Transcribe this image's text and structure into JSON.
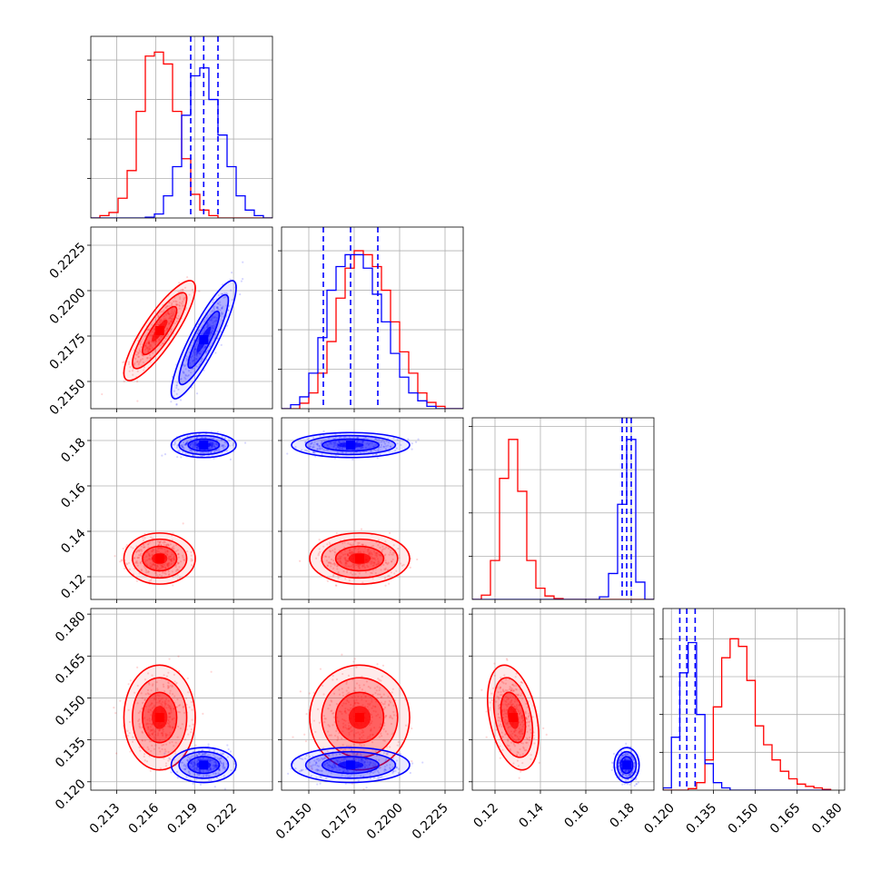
{
  "chart_data": {
    "type": "corner",
    "colors": {
      "series_a": "#ff0000",
      "series_b": "#0000ff"
    },
    "grid": true,
    "series": [
      {
        "color": "#ff0000",
        "mean": [
          0.2163,
          0.2178,
          0.128,
          0.143
        ],
        "std": [
          0.0011,
          0.0011,
          0.0045,
          0.0075
        ]
      },
      {
        "color": "#0000ff",
        "mean": [
          0.2197,
          0.2173,
          0.178,
          0.126
        ],
        "std": [
          0.001,
          0.0013,
          0.0022,
          0.0025
        ]
      }
    ],
    "quantile_lines": [
      [
        0.2187,
        0.2197,
        0.2208
      ],
      [
        0.2158,
        0.2173,
        0.2188
      ],
      [
        0.176,
        0.178,
        0.18
      ],
      [
        0.123,
        0.1255,
        0.1285
      ]
    ],
    "axes": [
      {
        "range": [
          0.211,
          0.225
        ],
        "ticks": [
          0.213,
          0.216,
          0.219,
          0.222
        ],
        "ticklabels": [
          "0.213",
          "0.216",
          "0.219",
          "0.222"
        ]
      },
      {
        "range": [
          0.2135,
          0.2235
        ],
        "ticks": [
          0.215,
          0.2175,
          0.22,
          0.2225
        ],
        "ticklabels": [
          "0.2150",
          "0.2175",
          "0.2200",
          "0.2225"
        ]
      },
      {
        "range": [
          0.11,
          0.19
        ],
        "ticks": [
          0.12,
          0.14,
          0.16,
          0.18
        ],
        "ticklabels": [
          "0.12",
          "0.14",
          "0.16",
          "0.18"
        ]
      },
      {
        "range": [
          0.117,
          0.182
        ],
        "ticks": [
          0.12,
          0.135,
          0.15,
          0.165,
          0.18
        ],
        "ticklabels": [
          "0.120",
          "0.135",
          "0.150",
          "0.165",
          "0.180"
        ]
      }
    ],
    "diag_ymax": [
      0.23,
      0.23,
      0.21,
      0.24
    ],
    "diag_yticks": [
      0.05,
      0.1,
      0.15,
      0.2
    ],
    "histograms": [
      {
        "edges": [
          0.211,
          0.2117,
          0.2124,
          0.2131,
          0.2138,
          0.2145,
          0.2152,
          0.2159,
          0.2166,
          0.2173,
          0.218,
          0.2187,
          0.2194,
          0.2201,
          0.2208,
          0.2215,
          0.2222,
          0.2229,
          0.2236,
          0.2243,
          0.225
        ],
        "a": [
          0.0,
          0.003,
          0.007,
          0.025,
          0.06,
          0.135,
          0.205,
          0.21,
          0.195,
          0.135,
          0.075,
          0.03,
          0.01,
          0.003,
          0.0,
          0.0,
          0.0,
          0.0,
          0.0,
          0.0
        ],
        "b": [
          0.0,
          0.0,
          0.0,
          0.0,
          0.0,
          0.0,
          0.001,
          0.005,
          0.028,
          0.065,
          0.13,
          0.18,
          0.19,
          0.15,
          0.105,
          0.065,
          0.028,
          0.01,
          0.003,
          0.0
        ]
      },
      {
        "edges": [
          0.2135,
          0.214,
          0.2145,
          0.215,
          0.2155,
          0.216,
          0.2165,
          0.217,
          0.2175,
          0.218,
          0.2185,
          0.219,
          0.2195,
          0.22,
          0.2205,
          0.221,
          0.2215,
          0.222,
          0.2225,
          0.223,
          0.2235
        ],
        "a": [
          0.0,
          0.0,
          0.007,
          0.02,
          0.045,
          0.085,
          0.14,
          0.178,
          0.2,
          0.195,
          0.18,
          0.15,
          0.11,
          0.072,
          0.045,
          0.02,
          0.008,
          0.003,
          0.0,
          0.0
        ],
        "b": [
          0.0,
          0.005,
          0.015,
          0.045,
          0.09,
          0.15,
          0.18,
          0.195,
          0.195,
          0.178,
          0.145,
          0.11,
          0.07,
          0.04,
          0.02,
          0.01,
          0.003,
          0.0,
          0.0,
          0.0
        ]
      },
      {
        "edges": [
          0.11,
          0.114,
          0.118,
          0.122,
          0.126,
          0.13,
          0.134,
          0.138,
          0.142,
          0.146,
          0.15,
          0.154,
          0.158,
          0.162,
          0.166,
          0.17,
          0.174,
          0.178,
          0.182,
          0.186,
          0.19
        ],
        "a": [
          0.0,
          0.005,
          0.045,
          0.14,
          0.185,
          0.125,
          0.045,
          0.013,
          0.004,
          0.001,
          0.0,
          0.0,
          0.0,
          0.0,
          0.0,
          0.0,
          0.0,
          0.0,
          0.0,
          0.0
        ],
        "b": [
          0.0,
          0.0,
          0.0,
          0.0,
          0.0,
          0.0,
          0.0,
          0.0,
          0.0,
          0.0,
          0.0,
          0.0,
          0.0,
          0.0,
          0.003,
          0.03,
          0.11,
          0.185,
          0.02,
          0.0
        ]
      },
      {
        "edges": [
          0.117,
          0.12,
          0.123,
          0.126,
          0.129,
          0.132,
          0.135,
          0.138,
          0.141,
          0.144,
          0.147,
          0.15,
          0.153,
          0.156,
          0.159,
          0.162,
          0.165,
          0.168,
          0.171,
          0.174,
          0.177
        ],
        "a": [
          0.0,
          0.0,
          0.0,
          0.002,
          0.01,
          0.04,
          0.11,
          0.175,
          0.2,
          0.19,
          0.145,
          0.085,
          0.06,
          0.04,
          0.025,
          0.015,
          0.008,
          0.005,
          0.003,
          0.001
        ],
        "b": [
          0.003,
          0.07,
          0.155,
          0.195,
          0.1,
          0.035,
          0.01,
          0.003,
          0.0,
          0.0,
          0.0,
          0.0,
          0.0,
          0.0,
          0.0,
          0.0,
          0.0,
          0.0,
          0.0,
          0.0
        ]
      }
    ],
    "pairs": [
      {
        "x": 0,
        "y": 1,
        "corr_a": 0.85,
        "corr_b": 0.88
      },
      {
        "x": 0,
        "y": 2,
        "corr_a": 0.0,
        "corr_b": 0.0
      },
      {
        "x": 1,
        "y": 2,
        "corr_a": 0.0,
        "corr_b": 0.0
      },
      {
        "x": 0,
        "y": 3,
        "corr_a": 0.0,
        "corr_b": 0.0
      },
      {
        "x": 1,
        "y": 3,
        "corr_a": 0.0,
        "corr_b": 0.0
      },
      {
        "x": 2,
        "y": 3,
        "corr_a": -0.35,
        "corr_b": 0.0
      }
    ]
  }
}
